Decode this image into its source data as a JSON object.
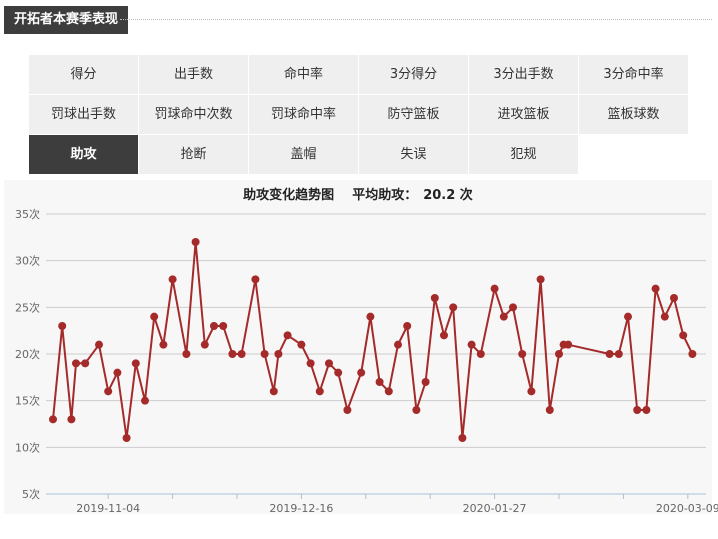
{
  "section": {
    "title": "开拓者本赛季表现"
  },
  "stats": {
    "items": [
      {
        "label": "得分",
        "active": false
      },
      {
        "label": "出手数",
        "active": false
      },
      {
        "label": "命中率",
        "active": false
      },
      {
        "label": "3分得分",
        "active": false
      },
      {
        "label": "3分出手数",
        "active": false
      },
      {
        "label": "3分命中率",
        "active": false
      },
      {
        "label": "罚球出手数",
        "active": false
      },
      {
        "label": "罚球命中次数",
        "active": false
      },
      {
        "label": "罚球命中率",
        "active": false
      },
      {
        "label": "防守篮板",
        "active": false
      },
      {
        "label": "进攻篮板",
        "active": false
      },
      {
        "label": "篮板球数",
        "active": false
      },
      {
        "label": "助攻",
        "active": true
      },
      {
        "label": "抢断",
        "active": false
      },
      {
        "label": "盖帽",
        "active": false
      },
      {
        "label": "失误",
        "active": false
      },
      {
        "label": "犯规",
        "active": false
      }
    ]
  },
  "colors": {
    "series": "#a52a2a",
    "active_tab": "#3d3d3d",
    "grid": "#cccccc"
  },
  "chart_data": {
    "type": "line",
    "title": "助攻变化趋势图",
    "average_label": "平均助攻：",
    "average_value": "20.2 次",
    "xlabel": "",
    "ylabel": "",
    "ylim": [
      5,
      35
    ],
    "y_ticks": [
      "5次",
      "10次",
      "15次",
      "20次",
      "25次",
      "30次",
      "35次"
    ],
    "x_tick_labels": [
      "2019-11-04",
      "2019-12-16",
      "2020-01-27",
      "2020-03-09"
    ],
    "xlim": [
      "2019-10-23",
      "2020-03-11"
    ],
    "grid": true,
    "x": [
      "2019-10-23",
      "2019-10-25",
      "2019-10-27",
      "2019-10-28",
      "2019-10-30",
      "2019-11-02",
      "2019-11-04",
      "2019-11-06",
      "2019-11-08",
      "2019-11-10",
      "2019-11-12",
      "2019-11-14",
      "2019-11-16",
      "2019-11-18",
      "2019-11-21",
      "2019-11-23",
      "2019-11-25",
      "2019-11-27",
      "2019-11-29",
      "2019-12-01",
      "2019-12-03",
      "2019-12-06",
      "2019-12-08",
      "2019-12-10",
      "2019-12-11",
      "2019-12-13",
      "2019-12-16",
      "2019-12-18",
      "2019-12-20",
      "2019-12-22",
      "2019-12-24",
      "2019-12-26",
      "2019-12-29",
      "2019-12-31",
      "2020-01-02",
      "2020-01-04",
      "2020-01-06",
      "2020-01-08",
      "2020-01-10",
      "2020-01-12",
      "2020-01-14",
      "2020-01-16",
      "2020-01-18",
      "2020-01-20",
      "2020-01-22",
      "2020-01-24",
      "2020-01-27",
      "2020-01-29",
      "2020-01-31",
      "2020-02-02",
      "2020-02-04",
      "2020-02-06",
      "2020-02-08",
      "2020-02-10",
      "2020-02-11",
      "2020-02-12",
      "2020-02-21",
      "2020-02-23",
      "2020-02-25",
      "2020-02-27",
      "2020-02-29",
      "2020-03-02",
      "2020-03-04",
      "2020-03-06",
      "2020-03-08",
      "2020-03-10"
    ],
    "series": [
      {
        "values": [
          13,
          23,
          13,
          19,
          19,
          21,
          16,
          18,
          11,
          19,
          15,
          24,
          21,
          28,
          20,
          32,
          21,
          23,
          23,
          20,
          20,
          28,
          20,
          16,
          20,
          22,
          21,
          19,
          16,
          19,
          18,
          14,
          18,
          24,
          17,
          16,
          21,
          23,
          14,
          17,
          26,
          22,
          25,
          11,
          21,
          20,
          27,
          24,
          25,
          20,
          16,
          28,
          14,
          20,
          21,
          21,
          20,
          20,
          24,
          14,
          14,
          27,
          24,
          26,
          22,
          20
        ]
      }
    ]
  }
}
